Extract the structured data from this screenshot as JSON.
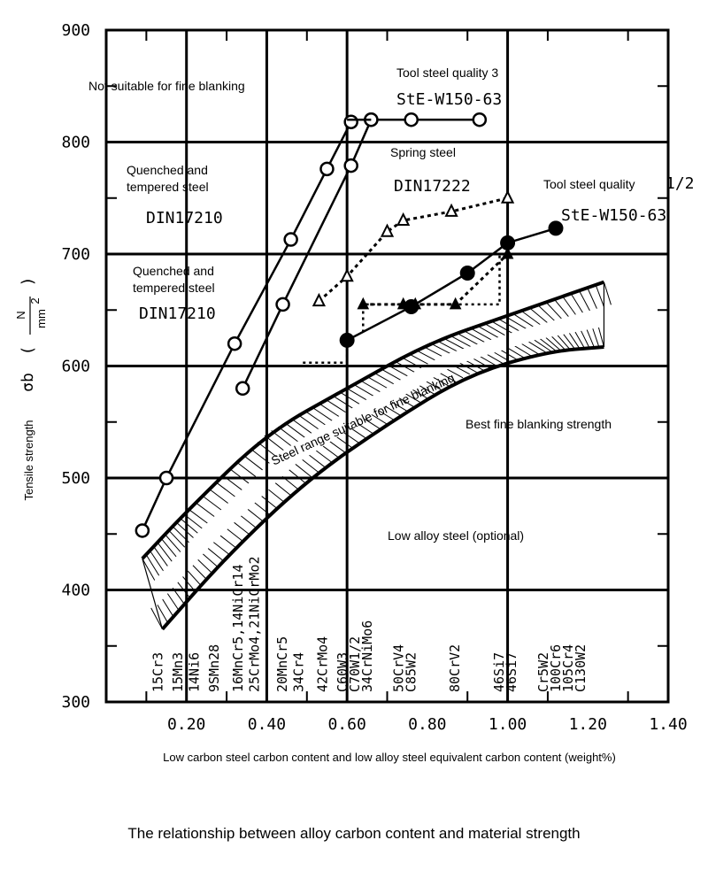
{
  "chart_data": {
    "type": "line",
    "caption": "The relationship between alloy carbon content and material strength",
    "xlabel": "Low carbon steel carbon content and low alloy steel equivalent carbon content (weight%)",
    "ylabel": "Tensile strength",
    "ysymbol": "σb",
    "yunit_num": "N",
    "yunit_den": "mm",
    "yunit_exp": "2",
    "xlim": [
      0.0,
      1.4
    ],
    "ylim": [
      300,
      900
    ],
    "x_ticks": [
      0.2,
      0.4,
      0.6,
      0.8,
      1.0,
      1.2,
      1.4
    ],
    "x_tick_labels": [
      "0.20",
      "0.40",
      "0.60",
      "0.80",
      "1.00",
      "1.20",
      "1.40"
    ],
    "y_ticks": [
      300,
      400,
      500,
      600,
      700,
      800,
      900
    ],
    "y_tick_labels": [
      "300",
      "400",
      "500",
      "600",
      "700",
      "800",
      "900"
    ],
    "grid_x": [
      0.2,
      0.4,
      0.6,
      1.0
    ],
    "grid_y": [
      400,
      500,
      600,
      700,
      800
    ],
    "series": [
      {
        "name": "DIN17210 quenched and tempered steel (a)",
        "marker": "circle-open",
        "style": "solid",
        "x": [
          0.09,
          0.15,
          0.32,
          0.46,
          0.55,
          0.61
        ],
        "y": [
          453,
          500,
          620,
          713,
          776,
          818
        ]
      },
      {
        "name": "DIN17210 quenched and tempered steel (b)",
        "marker": "circle-open",
        "style": "solid",
        "x": [
          0.34,
          0.44,
          0.61,
          0.66
        ],
        "y": [
          580,
          655,
          779,
          820
        ]
      },
      {
        "name": "StE-W150-63 tool steel quality 3",
        "marker": "circle-open",
        "style": "solid",
        "x": [
          0.66,
          0.76,
          0.93
        ],
        "y": [
          820,
          820,
          820
        ]
      },
      {
        "name": "StE-W150-63 tool steel quality 1/2",
        "marker": "circle-filled",
        "style": "solid",
        "x": [
          0.6,
          0.76,
          0.9,
          1.0,
          1.12
        ],
        "y": [
          623,
          653,
          683,
          710,
          723
        ]
      },
      {
        "name": "DIN17222 spring steel (upper)",
        "marker": "triangle-open",
        "style": "dotted",
        "x": [
          0.53,
          0.6,
          0.7,
          0.74,
          0.86,
          1.0
        ],
        "y": [
          658,
          680,
          720,
          730,
          738,
          750
        ]
      },
      {
        "name": "DIN17222 spring steel (lower)",
        "marker": "triangle-filled",
        "style": "dotted",
        "x": [
          0.64,
          0.74,
          0.77,
          0.87,
          1.0
        ],
        "y": [
          655,
          655,
          655,
          655,
          700
        ]
      }
    ],
    "steel_grades": [
      {
        "x": 0.14,
        "labels": [
          "15Cr3"
        ]
      },
      {
        "x": 0.19,
        "labels": [
          "15Mn3"
        ]
      },
      {
        "x": 0.23,
        "labels": [
          "14Ni6"
        ]
      },
      {
        "x": 0.28,
        "labels": [
          "9SMn28"
        ]
      },
      {
        "x": 0.34,
        "labels": [
          "16MnCr5,14NiCr14"
        ]
      },
      {
        "x": 0.38,
        "labels": [
          "25CrMo4,21NiCrMo2"
        ]
      },
      {
        "x": 0.45,
        "labels": [
          "20MnCr5"
        ]
      },
      {
        "x": 0.49,
        "labels": [
          "34Cr4"
        ]
      },
      {
        "x": 0.55,
        "labels": [
          "42CrMo4"
        ]
      },
      {
        "x": 0.6,
        "labels": [
          "C60W3",
          "C70W1/2",
          "34CrNiMo6"
        ]
      },
      {
        "x": 0.74,
        "labels": [
          "50CrV4",
          "C85W2"
        ]
      },
      {
        "x": 0.88,
        "labels": [
          "80CrV2"
        ]
      },
      {
        "x": 0.99,
        "labels": [
          "46Si7",
          "46Si7"
        ]
      },
      {
        "x": 1.1,
        "labels": [
          "Cr5W2",
          "100Cr6",
          "105Cr4",
          "C130W2"
        ]
      }
    ],
    "annotations": [
      "Not suitable for fine blanking",
      "Tool steel quality 3",
      "StE-W150-63",
      "Spring steel",
      "DIN17222",
      "Quenched and",
      "tempered steel",
      "DIN17210",
      "Quenched and",
      "tempered steel",
      "DIN17210",
      "Tool steel quality",
      "1/2",
      "StE-W150-63",
      "Steel range suitable for fine blanking",
      "Best fine blanking strength",
      "Low alloy steel (optional)"
    ],
    "band_upper": {
      "x": [
        0.09,
        0.2,
        0.4,
        0.6,
        0.8,
        1.0,
        1.24
      ],
      "y": [
        428,
        470,
        540,
        580,
        620,
        645,
        675
      ]
    },
    "band_lower": {
      "x": [
        0.14,
        0.3,
        0.5,
        0.7,
        0.9,
        1.1,
        1.24
      ],
      "y": [
        365,
        430,
        498,
        548,
        592,
        613,
        617
      ]
    }
  },
  "colors": {
    "ink": "#000000",
    "background": "#ffffff"
  }
}
